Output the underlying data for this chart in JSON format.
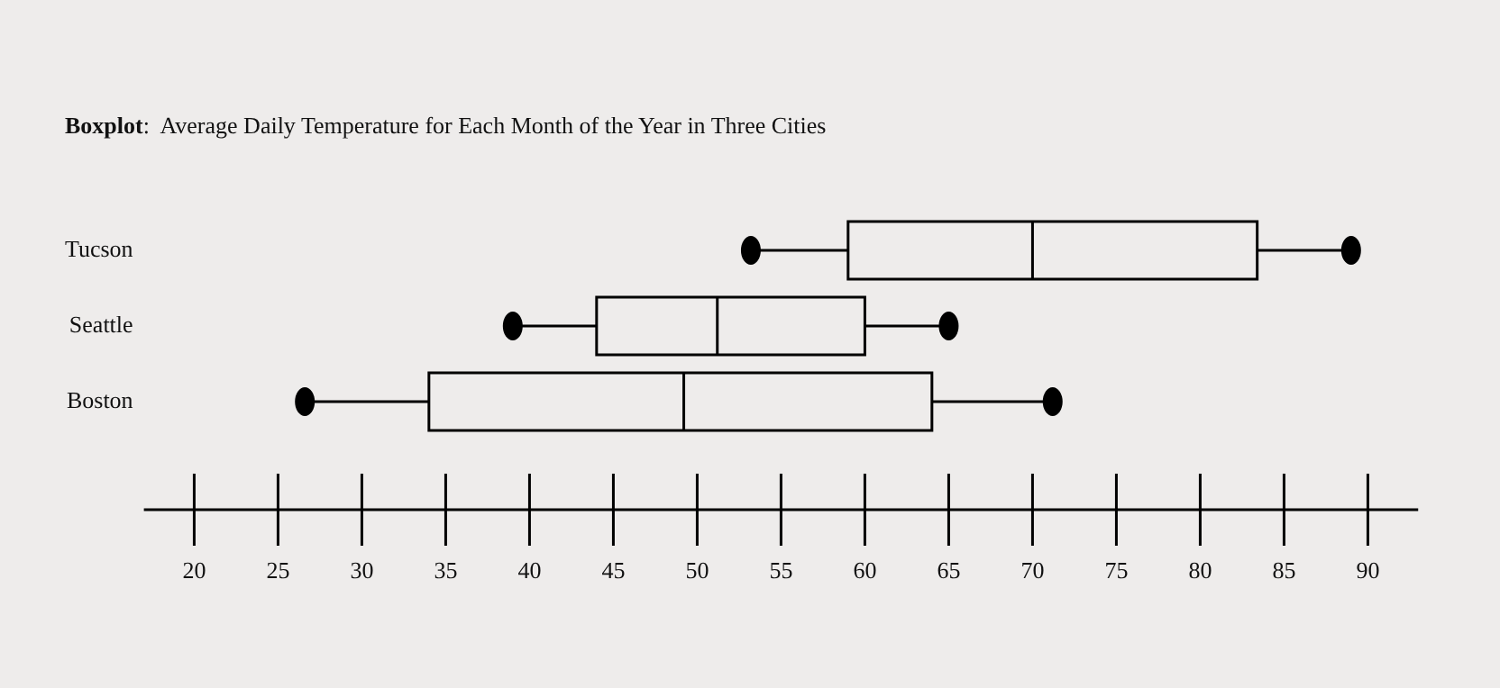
{
  "chart_data": {
    "type": "box",
    "orientation": "horizontal",
    "title": "Boxplot:  Average Daily Temperature for Each Month of the Year in Three Cities",
    "categories": [
      "Tucson",
      "Seattle",
      "Boston"
    ],
    "boxes": [
      {
        "low": 53.2,
        "q1": 59,
        "median": 70,
        "q3": 83.4,
        "high": 89
      },
      {
        "low": 39,
        "q1": 44,
        "median": 51.2,
        "q3": 60,
        "high": 65
      },
      {
        "low": 26.6,
        "q1": 34,
        "median": 49.2,
        "q3": 64,
        "high": 71.2
      }
    ],
    "xlim": [
      17,
      93
    ],
    "xticks": [
      20,
      25,
      30,
      35,
      40,
      45,
      50,
      55,
      60,
      65,
      70,
      75,
      80,
      85,
      90
    ],
    "series": [
      {
        "type": "scatter",
        "color": "#000000",
        "marker": "circle",
        "x": [
          "Tucson",
          "Tucson",
          "Seattle",
          "Seattle",
          "Boston",
          "Boston"
        ],
        "values": [
          53.2,
          89,
          39,
          65,
          26.6,
          71.2
        ]
      }
    ],
    "grid": false,
    "legend": false,
    "color": "#000000"
  }
}
